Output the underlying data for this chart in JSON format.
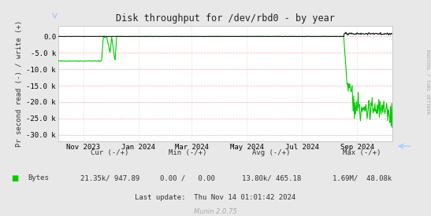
{
  "title": "Disk throughput for /dev/rbd0 - by year",
  "ylabel": "Pr second read (-) / write (+)",
  "bg_color": "#e8e8e8",
  "plot_bg_color": "#ffffff",
  "grid_h_color": "#ffaaaa",
  "grid_v_color": "#cccccc",
  "line_color_green": "#00cc00",
  "line_color_black": "#111111",
  "ylim": [
    -32000,
    3200
  ],
  "yticks": [
    0,
    -5000,
    -10000,
    -15000,
    -20000,
    -25000,
    -30000
  ],
  "ytick_labels": [
    "0.0",
    "-5.0 k",
    "-10.0 k",
    "-15.0 k",
    "-20.0 k",
    "-25.0 k",
    "-30.0 k"
  ],
  "xtick_labels": [
    "Nov 2023",
    "Jan 2024",
    "Mar 2024",
    "May 2024",
    "Jul 2024",
    "Sep 2024"
  ],
  "xtick_pos": [
    0.075,
    0.24,
    0.4,
    0.565,
    0.73,
    0.895
  ],
  "bytes_label": "Bytes",
  "cur_label": "Cur (-/+)",
  "min_label": "Min (-/+)",
  "avg_label": "Avg (-/+)",
  "max_label": "Max (-/+)",
  "cur": "21.35k/ 947.89",
  "min_val": "0.00 /   0.00",
  "avg": "13.80k/ 465.18",
  "max_val": "1.69M/  48.08k",
  "last_update": "Last update:  Thu Nov 14 01:01:42 2024",
  "munin_text": "Munin 2.0.75",
  "rrdtool_text": "RRDTOOL / TOBI OETIKER",
  "sidebar_color": "#aaaaaa",
  "arrow_color": "#aaccff"
}
